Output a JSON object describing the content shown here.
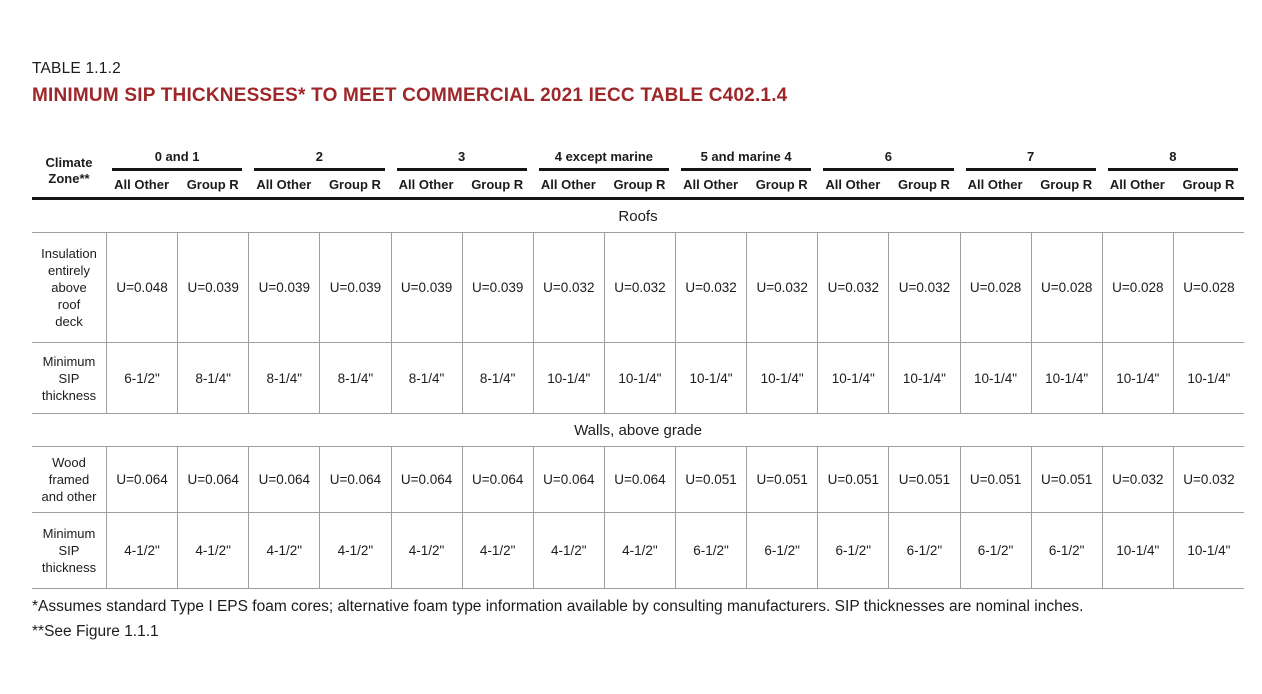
{
  "title": {
    "eyebrow": "TABLE 1.1.2",
    "main": "MINIMUM SIP THICKNESSES* TO MEET COMMERCIAL 2021 IECC TABLE C402.1.4"
  },
  "colors": {
    "title_red": "#9E272A",
    "rule_dark": "#151515",
    "grid_gray": "#9E9E9E",
    "text": "#1C1C1C"
  },
  "table": {
    "corner_header": "Climate\nZone**",
    "zones": [
      "0 and 1",
      "2",
      "3",
      "4 except marine",
      "5 and marine 4",
      "6",
      "7",
      "8"
    ],
    "subheaders": [
      "All Other",
      "Group R"
    ],
    "sections": [
      {
        "title": "Roofs",
        "rows": [
          {
            "label": "Insulation\nentirely\nabove\nroof\ndeck",
            "values": [
              "U=0.048",
              "U=0.039",
              "U=0.039",
              "U=0.039",
              "U=0.039",
              "U=0.039",
              "U=0.032",
              "U=0.032",
              "U=0.032",
              "U=0.032",
              "U=0.032",
              "U=0.032",
              "U=0.028",
              "U=0.028",
              "U=0.028",
              "U=0.028"
            ]
          },
          {
            "label": "Minimum\nSIP\nthickness",
            "values": [
              "6-1/2\"",
              "8-1/4\"",
              "8-1/4\"",
              "8-1/4\"",
              "8-1/4\"",
              "8-1/4\"",
              "10-1/4\"",
              "10-1/4\"",
              "10-1/4\"",
              "10-1/4\"",
              "10-1/4\"",
              "10-1/4\"",
              "10-1/4\"",
              "10-1/4\"",
              "10-1/4\"",
              "10-1/4\""
            ]
          }
        ]
      },
      {
        "title": "Walls, above grade",
        "rows": [
          {
            "label": "Wood\nframed\nand other",
            "values": [
              "U=0.064",
              "U=0.064",
              "U=0.064",
              "U=0.064",
              "U=0.064",
              "U=0.064",
              "U=0.064",
              "U=0.064",
              "U=0.051",
              "U=0.051",
              "U=0.051",
              "U=0.051",
              "U=0.051",
              "U=0.051",
              "U=0.032",
              "U=0.032"
            ]
          },
          {
            "label": "Minimum\nSIP\nthickness",
            "values": [
              "4-1/2\"",
              "4-1/2\"",
              "4-1/2\"",
              "4-1/2\"",
              "4-1/2\"",
              "4-1/2\"",
              "4-1/2\"",
              "4-1/2\"",
              "6-1/2\"",
              "6-1/2\"",
              "6-1/2\"",
              "6-1/2\"",
              "6-1/2\"",
              "6-1/2\"",
              "10-1/4\"",
              "10-1/4\""
            ]
          }
        ]
      }
    ]
  },
  "footnotes": [
    "*Assumes standard Type I EPS foam cores; alternative foam type information available by consulting manufacturers. SIP thicknesses are nominal inches.",
    "**See Figure 1.1.1"
  ]
}
